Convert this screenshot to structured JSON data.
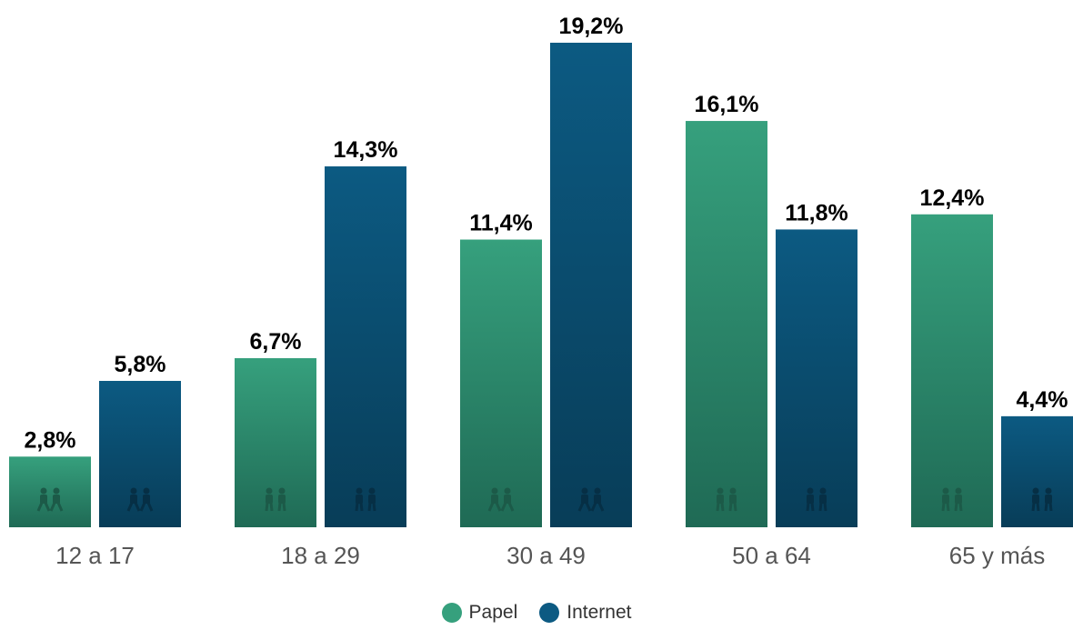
{
  "chart_data": {
    "type": "bar",
    "categories": [
      "12 a 17",
      "18 a 29",
      "30 a 49",
      "50 a 64",
      "65 y más"
    ],
    "series": [
      {
        "name": "Papel",
        "values": [
          2.8,
          6.7,
          11.4,
          16.1,
          12.4
        ],
        "labels": [
          "2,8%",
          "6,7%",
          "11,4%",
          "16,1%",
          "12,4%"
        ]
      },
      {
        "name": "Internet",
        "values": [
          5.8,
          14.3,
          19.2,
          11.8,
          4.4
        ],
        "labels": [
          "5,8%",
          "14,3%",
          "19,2%",
          "11,8%",
          "4,4%"
        ]
      }
    ],
    "ylim": [
      0,
      19.2
    ],
    "grid": false,
    "legend_position": "bottom-center",
    "colors": {
      "Papel": {
        "top": "#36a07d",
        "bottom": "#1f6a55"
      },
      "Internet": {
        "top": "#0c5a82",
        "bottom": "#083d58"
      }
    },
    "bar_icons": [
      "walking-kids-icon",
      "walking-kids-icon",
      "couple-standing-icon",
      "couple-standing-icon",
      "couple-walking-icon",
      "couple-walking-icon",
      "couple-holding-hands-icon",
      "couple-holding-hands-icon",
      "elderly-couple-icon",
      "elderly-couple-icon"
    ]
  },
  "legend": {
    "items": [
      {
        "label": "Papel",
        "color": "#36a07d"
      },
      {
        "label": "Internet",
        "color": "#0c5a82"
      }
    ]
  }
}
